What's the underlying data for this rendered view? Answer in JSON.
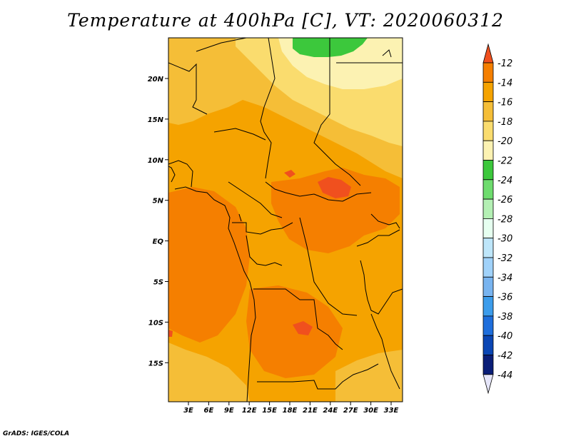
{
  "title": "Temperature at 400hPa [C], VT: 2020060312",
  "credit": "GrADS: IGES/COLA",
  "map": {
    "lat_labels": [
      "20N",
      "15N",
      "10N",
      "5N",
      "EQ",
      "5S",
      "10S",
      "15S"
    ],
    "lon_labels": [
      "3E",
      "6E",
      "9E",
      "12E",
      "15E",
      "18E",
      "21E",
      "24E",
      "27E",
      "30E",
      "33E"
    ],
    "base_color": "#F5A300"
  },
  "colorbar": {
    "labels": [
      "-12",
      "-14",
      "-16",
      "-18",
      "-20",
      "-22",
      "-24",
      "-26",
      "-28",
      "-30",
      "-32",
      "-34",
      "-36",
      "-38",
      "-40",
      "-42",
      "-44"
    ],
    "colors": [
      "#F0501E",
      "#F57F00",
      "#F5A300",
      "#F5BE37",
      "#FADC6E",
      "#FCF2B2",
      "#3CC83C",
      "#6EDC6E",
      "#B4F0B4",
      "#E6FFF0",
      "#BEE6FA",
      "#A0D2FA",
      "#78B4F0",
      "#3C9CEB",
      "#1E6EDC",
      "#0A46B4",
      "#0A1E78",
      "#E6E6FA"
    ]
  }
}
